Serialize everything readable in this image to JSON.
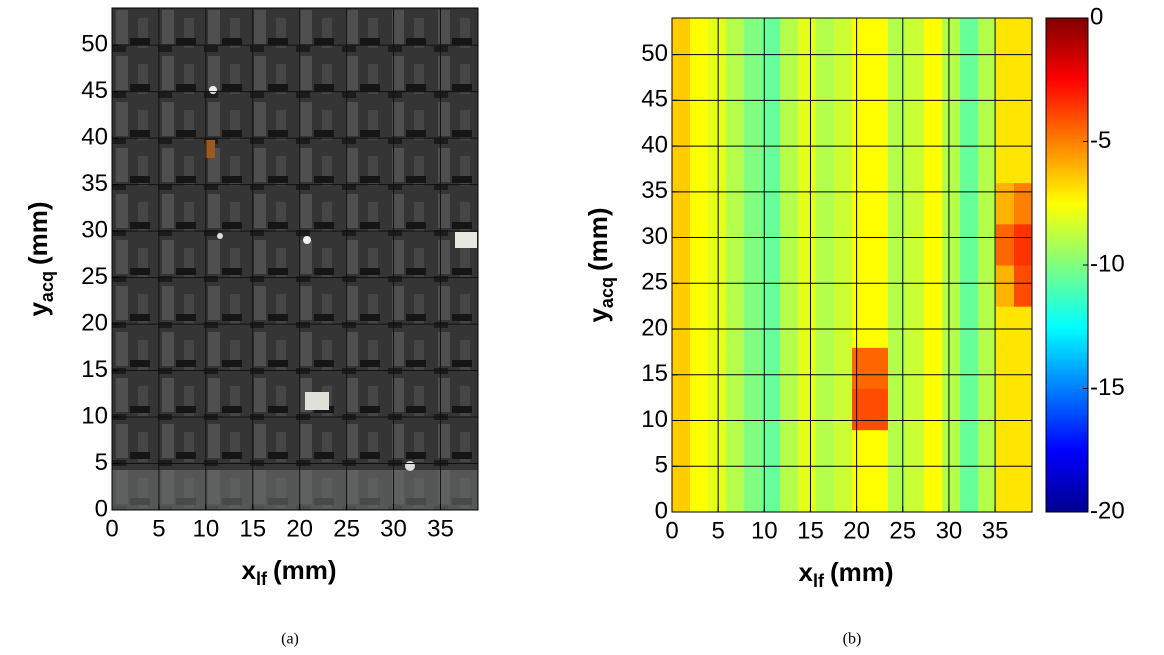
{
  "chart_data": [
    {
      "type": "image",
      "caption": "(a)",
      "xlabel": {
        "text": "x",
        "sub": "lf",
        "unit": "(mm)"
      },
      "ylabel": {
        "text": "y",
        "sub": "acq",
        "unit": "(mm)"
      },
      "xlim": [
        0,
        39
      ],
      "ylim": [
        0,
        54
      ],
      "xticks": [
        0,
        5,
        10,
        15,
        20,
        25,
        30,
        35
      ],
      "yticks": [
        0,
        5,
        10,
        15,
        20,
        25,
        30,
        35,
        40,
        45,
        50
      ],
      "grid": true
    },
    {
      "type": "heatmap",
      "caption": "(b)",
      "xlabel": {
        "text": "x",
        "sub": "lf",
        "unit": "(mm)"
      },
      "ylabel": {
        "text": "y",
        "sub": "acq",
        "unit": "(mm)"
      },
      "xlim": [
        0,
        39
      ],
      "ylim": [
        0,
        54
      ],
      "xticks": [
        0,
        5,
        10,
        15,
        20,
        25,
        30,
        35
      ],
      "yticks": [
        0,
        5,
        10,
        15,
        20,
        25,
        30,
        35,
        40,
        45,
        50
      ],
      "grid": true,
      "colormap": "jet",
      "clim": [
        -20,
        0
      ],
      "cticks": [
        0,
        -5,
        -10,
        -15,
        -20
      ],
      "z": [
        [
          -6.5,
          -7.5,
          -8,
          -9,
          -10,
          -10.5,
          -9,
          -8,
          -9,
          -8.5,
          -7.5,
          -7.5,
          -9,
          -8.5,
          -7.5,
          -9,
          -10.5,
          -9,
          -7,
          -7
        ],
        [
          -6.5,
          -7.5,
          -8,
          -9,
          -10,
          -10.5,
          -9,
          -8,
          -9,
          -8.5,
          -7.5,
          -7.5,
          -9,
          -8.5,
          -7.5,
          -9,
          -10.5,
          -9,
          -7,
          -7
        ],
        [
          -6.5,
          -7.5,
          -8,
          -9,
          -10,
          -10.5,
          -9,
          -8,
          -9,
          -8.5,
          -4,
          -4,
          -9,
          -8.5,
          -7.5,
          -9,
          -10.5,
          -9,
          -7,
          -7
        ],
        [
          -6.5,
          -7.5,
          -8,
          -9,
          -10,
          -10.5,
          -9,
          -8,
          -9,
          -8.5,
          -4.5,
          -4.5,
          -9,
          -8.5,
          -7.5,
          -9,
          -10.5,
          -9,
          -7,
          -7
        ],
        [
          -6.5,
          -7.5,
          -8,
          -9,
          -10,
          -10.5,
          -9,
          -8,
          -9,
          -8.5,
          -7.5,
          -7.5,
          -9,
          -8.5,
          -7.5,
          -9,
          -10.5,
          -9,
          -7,
          -7
        ],
        [
          -6.5,
          -7.5,
          -8,
          -9,
          -10,
          -10.5,
          -9,
          -8,
          -9,
          -8.5,
          -7.5,
          -7.5,
          -9,
          -8.5,
          -7.5,
          -9,
          -10.5,
          -9,
          -6,
          -4
        ],
        [
          -6.5,
          -7.5,
          -8,
          -9,
          -10,
          -10.5,
          -9,
          -8,
          -9,
          -8.5,
          -7.5,
          -7.5,
          -9,
          -8.5,
          -7.5,
          -9,
          -10.5,
          -9,
          -4.5,
          -3.5
        ],
        [
          -6.5,
          -7.5,
          -8,
          -9,
          -10,
          -10.5,
          -9,
          -8,
          -9,
          -8.5,
          -7.5,
          -7.5,
          -9,
          -8.5,
          -7.5,
          -9,
          -10.5,
          -9,
          -6,
          -5
        ],
        [
          -6.5,
          -7.5,
          -8,
          -9,
          -10,
          -10.5,
          -9,
          -8,
          -9,
          -8.5,
          -7.5,
          -7.5,
          -9,
          -8.5,
          -7.5,
          -9,
          -10.5,
          -9,
          -7,
          -7
        ],
        [
          -6.5,
          -7.5,
          -8,
          -9,
          -10,
          -10.5,
          -9,
          -8,
          -9,
          -8.5,
          -7.5,
          -7.5,
          -9,
          -8.5,
          -7.5,
          -9,
          -10.5,
          -9,
          -7,
          -7
        ],
        [
          -6.5,
          -7.5,
          -8,
          -9,
          -10,
          -10.5,
          -9,
          -8,
          -9,
          -8.5,
          -7.5,
          -7.5,
          -9,
          -8.5,
          -7.5,
          -9,
          -10.5,
          -9,
          -7,
          -7
        ],
        [
          -6.5,
          -7.5,
          -8,
          -9,
          -10,
          -10.5,
          -9,
          -8,
          -9,
          -8.5,
          -7.5,
          -7.5,
          -9,
          -8.5,
          -7.5,
          -9,
          -10.5,
          -9,
          -7,
          -7
        ]
      ]
    }
  ]
}
